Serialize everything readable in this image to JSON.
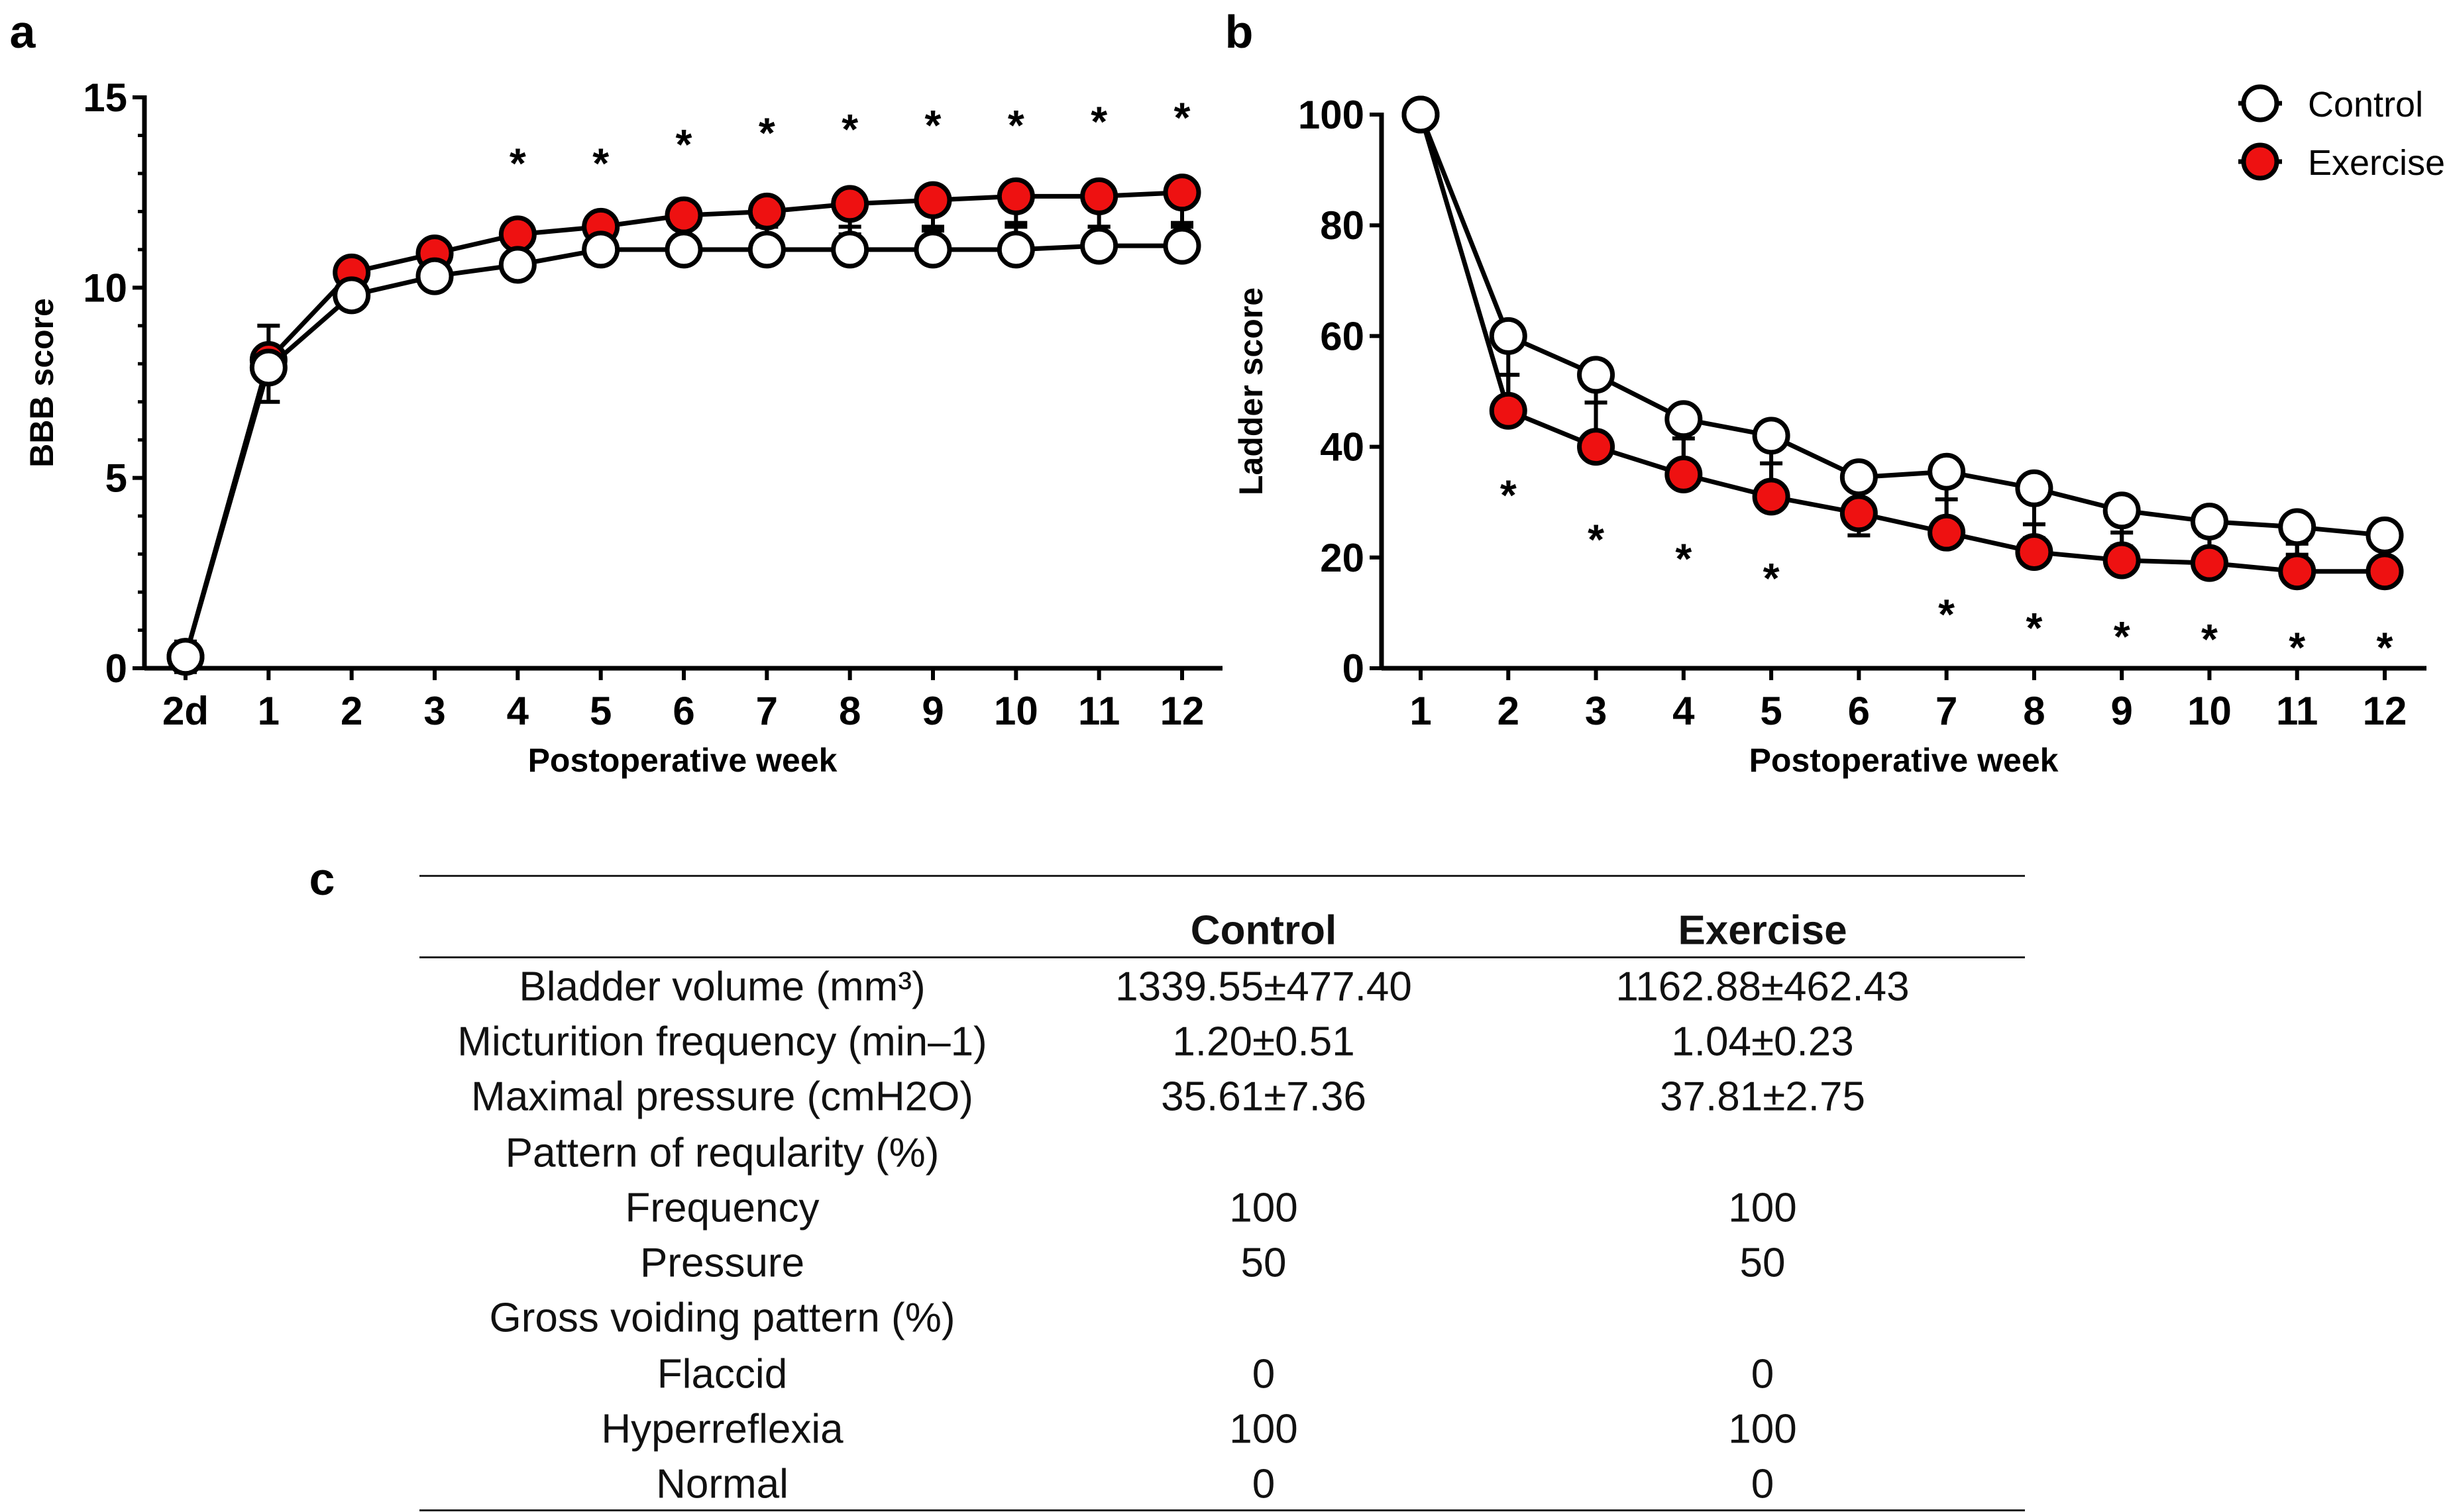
{
  "panels": {
    "a": "a",
    "b": "b",
    "c": "c"
  },
  "colors": {
    "control_fill": "#ffffff",
    "exercise_fill": "#ee1111",
    "stroke": "#000000"
  },
  "chart_data": [
    {
      "type": "line",
      "panel": "a",
      "xlabel": "Postoperative week",
      "ylabel": "BBB score",
      "categories": [
        "2d",
        "1",
        "2",
        "3",
        "4",
        "5",
        "6",
        "7",
        "8",
        "9",
        "10",
        "11",
        "12"
      ],
      "ylim": [
        0,
        15
      ],
      "yticks": [
        "0",
        "5",
        "10",
        "15"
      ],
      "series": [
        {
          "name": "Control",
          "values": [
            0.3,
            7.9,
            9.8,
            10.3,
            10.6,
            11.0,
            11.0,
            11.0,
            11.0,
            11.0,
            11.0,
            11.1,
            11.1
          ],
          "error": [
            0.4,
            1.1,
            0.8,
            0.7,
            0.6,
            0.4,
            0.6,
            0.6,
            0.6,
            0.6,
            0.6,
            0.5,
            0.5
          ]
        },
        {
          "name": "Exercise",
          "values": [
            0.3,
            8.1,
            10.4,
            10.9,
            11.4,
            11.6,
            11.9,
            12.0,
            12.2,
            12.3,
            12.4,
            12.4,
            12.5
          ],
          "error": [
            0.4,
            1.1,
            0.9,
            0.5,
            0.7,
            0.5,
            0.7,
            0.9,
            0.8,
            0.8,
            0.7,
            0.8,
            0.8
          ]
        }
      ],
      "significance": [
        "",
        "",
        "",
        "",
        "*",
        "*",
        "*",
        "*",
        "*",
        "*",
        "*",
        "*",
        "*"
      ]
    },
    {
      "type": "line",
      "panel": "b",
      "xlabel": "Postoperative week",
      "ylabel": "Ladder score",
      "categories": [
        "1",
        "2",
        "3",
        "4",
        "5",
        "6",
        "7",
        "8",
        "9",
        "10",
        "11",
        "12"
      ],
      "ylim": [
        0,
        100
      ],
      "yticks": [
        "0",
        "20",
        "40",
        "60",
        "80",
        "100"
      ],
      "legend": {
        "position": "top-right",
        "entries": [
          "Control",
          "Exercise"
        ]
      },
      "series": [
        {
          "name": "Control",
          "values": [
            100,
            60,
            53,
            45,
            42,
            34.5,
            35.5,
            32.5,
            28.5,
            26.5,
            25.5,
            24
          ],
          "error": [
            0,
            12,
            15,
            11,
            11,
            10.5,
            10,
            9,
            6.5,
            6,
            5,
            5.5
          ]
        },
        {
          "name": "Exercise",
          "values": [
            100,
            46.5,
            40,
            35,
            31,
            28,
            24.5,
            21,
            19.5,
            19,
            17.5,
            17.5
          ],
          "error": [
            0,
            6.5,
            8,
            6.5,
            6,
            7,
            6,
            5,
            5,
            5,
            5,
            5
          ]
        }
      ],
      "significance": [
        "",
        "*",
        "*",
        "*",
        "*",
        "",
        "*",
        "*",
        "*",
        "*",
        "*",
        "*"
      ]
    }
  ],
  "table": {
    "headers": [
      "",
      "Control",
      "Exercise"
    ],
    "rows": [
      [
        "Bladder volume (mm³)",
        "1339.55±477.40",
        "1162.88±462.43"
      ],
      [
        "Micturition frequency (min–1)",
        "1.20±0.51",
        "1.04±0.23"
      ],
      [
        "Maximal pressure (cmH2O)",
        "35.61±7.36",
        "37.81±2.75"
      ],
      [
        "Pattern of reqularity (%)",
        "",
        ""
      ],
      [
        "Frequency",
        "100",
        "100"
      ],
      [
        "Pressure",
        "50",
        "50"
      ],
      [
        "Gross voiding pattern (%)",
        "",
        ""
      ],
      [
        "Flaccid",
        "0",
        "0"
      ],
      [
        "Hyperreflexia",
        "100",
        "100"
      ],
      [
        "Normal",
        "0",
        "0"
      ]
    ]
  }
}
